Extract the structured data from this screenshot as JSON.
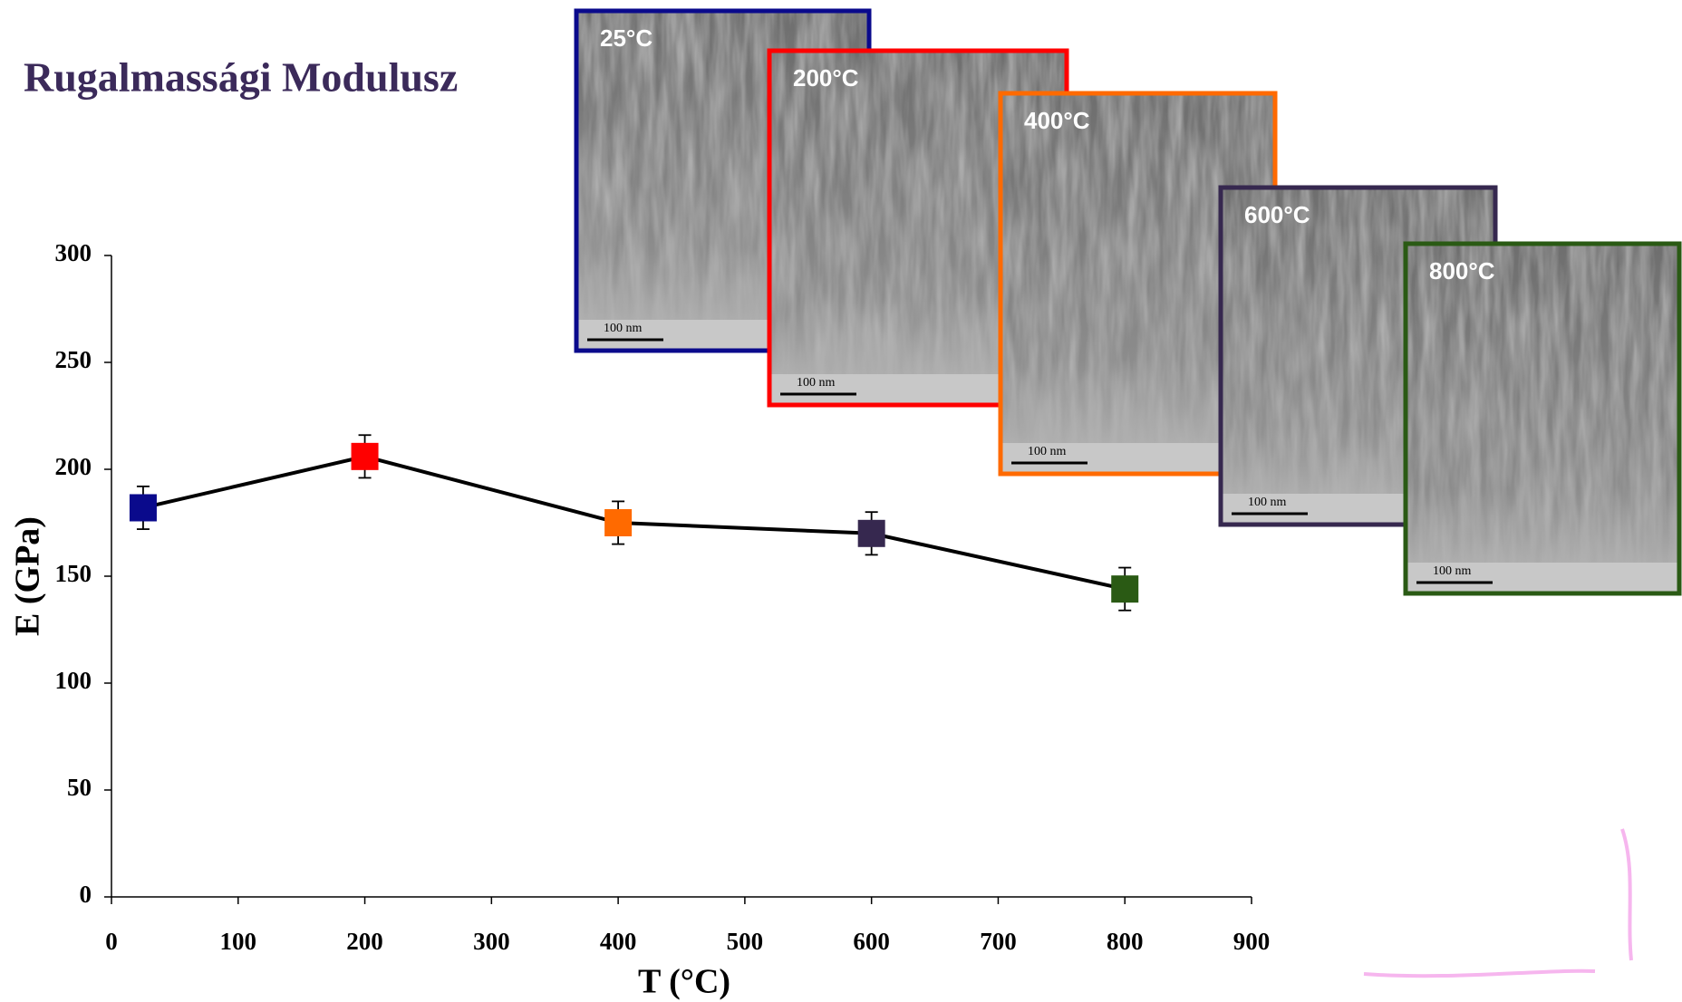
{
  "slide_title": "Rugalmassági Modulusz",
  "chart_data": {
    "type": "line",
    "x": [
      25,
      200,
      400,
      600,
      800
    ],
    "values": [
      182,
      206,
      175,
      170,
      144
    ],
    "errors": [
      10,
      10,
      10,
      10,
      10
    ],
    "point_colors": [
      "#0a0a8c",
      "#ff0000",
      "#ff6a00",
      "#36284f",
      "#2a5a14"
    ],
    "line_color": "#000000",
    "xlabel": "T (°C)",
    "ylabel": "E (GPa)",
    "xlim": [
      0,
      900
    ],
    "ylim": [
      0,
      300
    ],
    "xticks": [
      0,
      100,
      200,
      300,
      400,
      500,
      600,
      700,
      800,
      900
    ],
    "yticks": [
      0,
      50,
      100,
      150,
      200,
      250,
      300
    ]
  },
  "micrographs": [
    {
      "label": "25°C",
      "scale_bar": "100 nm",
      "color": "#0a0a8c"
    },
    {
      "label": "200°C",
      "scale_bar": "100 nm",
      "color": "#ff0000"
    },
    {
      "label": "400°C",
      "scale_bar": "100 nm",
      "color": "#ff6a00"
    },
    {
      "label": "600°C",
      "scale_bar": "100 nm",
      "color": "#36284f"
    },
    {
      "label": "800°C",
      "scale_bar": "100 nm",
      "color": "#2a5a14"
    }
  ]
}
